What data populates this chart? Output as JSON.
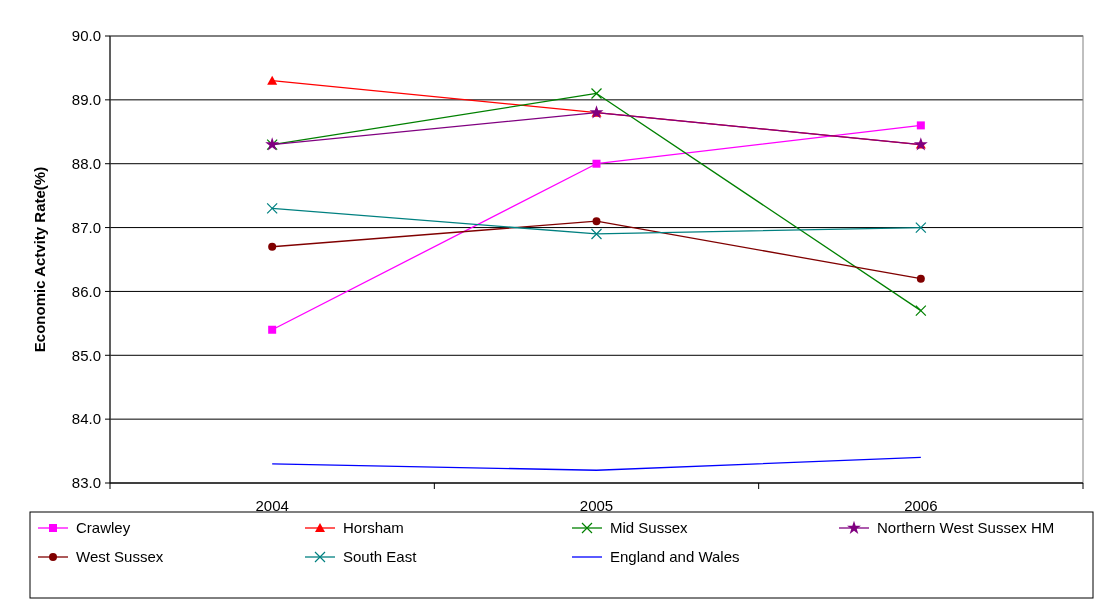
{
  "chart_data": {
    "type": "line",
    "ylabel": "Economic Actvity Rate(%)",
    "categories": [
      "2004",
      "2005",
      "2006"
    ],
    "series": [
      {
        "name": "Crawley",
        "color": "#ff00ff",
        "marker": "square",
        "values": [
          85.4,
          88.0,
          88.6
        ]
      },
      {
        "name": "Horsham",
        "color": "#ff0000",
        "marker": "triangle",
        "values": [
          89.3,
          88.8,
          88.3
        ]
      },
      {
        "name": "Mid Sussex",
        "color": "#008000",
        "marker": "cross",
        "values": [
          88.3,
          89.1,
          85.7
        ]
      },
      {
        "name": "Northern West Sussex HM",
        "color": "#800080",
        "marker": "star",
        "values": [
          88.3,
          88.8,
          88.3
        ]
      },
      {
        "name": "West Sussex",
        "color": "#800000",
        "marker": "circle",
        "values": [
          86.7,
          87.1,
          86.2
        ]
      },
      {
        "name": "South East",
        "color": "#008080",
        "marker": "cross",
        "values": [
          87.3,
          86.9,
          87.0
        ]
      },
      {
        "name": "England and Wales",
        "color": "#0000ff",
        "marker": "none",
        "values": [
          83.3,
          83.2,
          83.4
        ]
      }
    ],
    "ylim": [
      83,
      90
    ],
    "yticks": [
      {
        "value": 83,
        "label": "83.0"
      },
      {
        "value": 84,
        "label": "84.0"
      },
      {
        "value": 85,
        "label": "85.0"
      },
      {
        "value": 86,
        "label": "86.0"
      },
      {
        "value": 87,
        "label": "87.0"
      },
      {
        "value": 88,
        "label": "88.0"
      },
      {
        "value": 89,
        "label": "89.0"
      },
      {
        "value": 90,
        "label": "90.0"
      }
    ],
    "grid": "y",
    "legend": "bottom"
  }
}
